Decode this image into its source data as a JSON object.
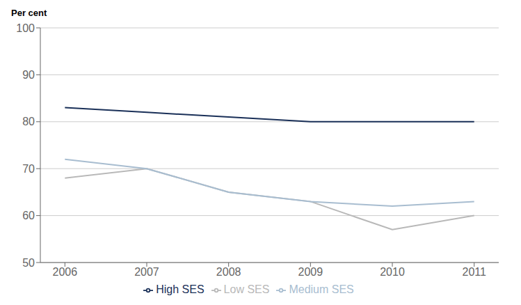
{
  "chart_data": {
    "type": "line",
    "y_label": "Per cent",
    "x": [
      2006,
      2007,
      2008,
      2009,
      2010,
      2011
    ],
    "series": [
      {
        "name": "Low SES",
        "color": "#b8b8b8",
        "values": [
          68,
          70,
          65,
          63,
          57,
          60
        ]
      },
      {
        "name": "Medium SES",
        "color": "#a8bdd0",
        "values": [
          72,
          70,
          65,
          63,
          62,
          63
        ]
      },
      {
        "name": "High SES",
        "color": "#1a3058",
        "values": [
          83,
          82,
          81,
          80,
          80,
          80
        ]
      }
    ],
    "xlim": [
      2005.7,
      2011.3
    ],
    "xticks": [
      2006,
      2007,
      2008,
      2009,
      2010,
      2011
    ],
    "ylim": [
      50,
      100
    ],
    "yticks": [
      50,
      60,
      70,
      80,
      90,
      100
    ],
    "grid": true,
    "legend": "bottom"
  }
}
